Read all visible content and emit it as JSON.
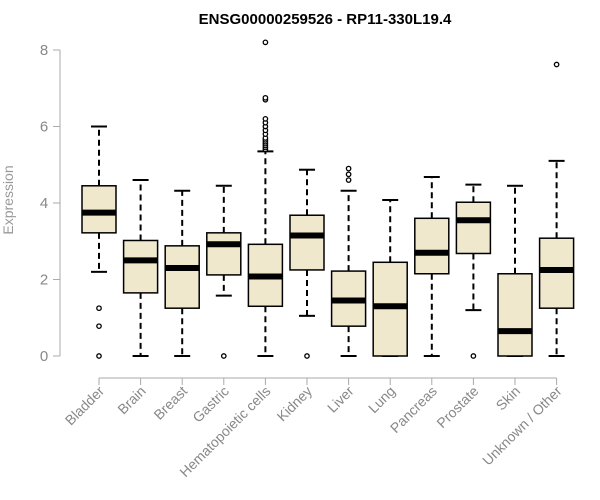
{
  "chart_data": {
    "type": "box",
    "title": "ENSG00000259526 - RP11-330L19.4",
    "xlabel": "",
    "ylabel": "Expression",
    "ylim": [
      0,
      8
    ],
    "yticks": [
      0,
      2,
      4,
      6,
      8
    ],
    "grid": false,
    "colors": {
      "box_fill": "#efe8cd",
      "stroke": "#000000",
      "axis": "#aaaaaa",
      "tick_text": "#888888"
    },
    "categories": [
      "Bladder",
      "Brain",
      "Breast",
      "Gastric",
      "Hematopoietic cells",
      "Kidney",
      "Liver",
      "Lung",
      "Pancreas",
      "Prostate",
      "Skin",
      "Unknown / Other"
    ],
    "boxes": [
      {
        "q1": 3.22,
        "median": 3.75,
        "q3": 4.45,
        "whisker_low": 2.2,
        "whisker_high": 6.0,
        "outliers": [
          1.25,
          0.78,
          0.0
        ]
      },
      {
        "q1": 1.65,
        "median": 2.5,
        "q3": 3.02,
        "whisker_low": 0.0,
        "whisker_high": 4.6,
        "outliers": []
      },
      {
        "q1": 1.25,
        "median": 2.3,
        "q3": 2.88,
        "whisker_low": 0.0,
        "whisker_high": 4.32,
        "outliers": []
      },
      {
        "q1": 2.12,
        "median": 2.92,
        "q3": 3.22,
        "whisker_low": 1.58,
        "whisker_high": 4.45,
        "outliers": [
          0.0
        ]
      },
      {
        "q1": 1.3,
        "median": 2.08,
        "q3": 2.92,
        "whisker_low": 0.0,
        "whisker_high": 5.35,
        "outliers": [
          5.4,
          5.45,
          5.5,
          5.55,
          5.6,
          5.65,
          5.7,
          5.8,
          5.9,
          6.0,
          6.1,
          6.2,
          6.7,
          6.75,
          8.2
        ]
      },
      {
        "q1": 2.25,
        "median": 3.15,
        "q3": 3.68,
        "whisker_low": 1.05,
        "whisker_high": 4.87,
        "outliers": [
          0.0
        ]
      },
      {
        "q1": 0.78,
        "median": 1.45,
        "q3": 2.22,
        "whisker_low": 0.0,
        "whisker_high": 4.32,
        "outliers": [
          4.6,
          4.75,
          4.9
        ]
      },
      {
        "q1": 0.0,
        "median": 1.3,
        "q3": 2.45,
        "whisker_low": 0.0,
        "whisker_high": 4.08,
        "outliers": []
      },
      {
        "q1": 2.15,
        "median": 2.7,
        "q3": 3.6,
        "whisker_low": 0.0,
        "whisker_high": 4.68,
        "outliers": []
      },
      {
        "q1": 2.68,
        "median": 3.55,
        "q3": 4.02,
        "whisker_low": 1.2,
        "whisker_high": 4.48,
        "outliers": [
          0.0
        ]
      },
      {
        "q1": 0.0,
        "median": 0.65,
        "q3": 2.15,
        "whisker_low": 0.0,
        "whisker_high": 4.45,
        "outliers": []
      },
      {
        "q1": 1.25,
        "median": 2.25,
        "q3": 3.08,
        "whisker_low": 0.0,
        "whisker_high": 5.1,
        "outliers": [
          7.62
        ]
      }
    ]
  }
}
